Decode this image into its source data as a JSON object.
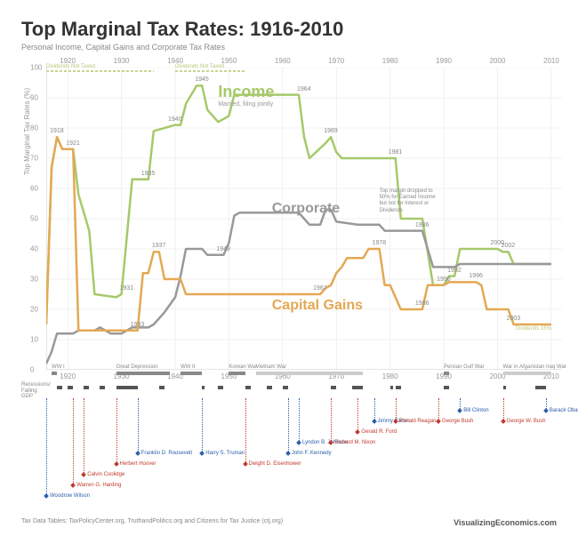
{
  "title": "Top Marginal Tax Rates: 1916-2010",
  "subtitle": "Personal Income, Capital Gains and Corporate Tax Rates",
  "y_axis": {
    "label": "Top Marginal Tax Rates (%)",
    "min": 0,
    "max": 100,
    "ticks": [
      0,
      10,
      20,
      30,
      40,
      50,
      60,
      70,
      80,
      90,
      100
    ]
  },
  "x_axis": {
    "min": 1916,
    "max": 2012,
    "ticks": [
      1920,
      1930,
      1940,
      1950,
      1960,
      1970,
      1980,
      1990,
      2000,
      2010
    ]
  },
  "background": "#ffffff",
  "grid_color": "#e5e5e5",
  "axis_color": "#cccccc",
  "series": {
    "income": {
      "label": "Income",
      "sublabel": "Married, filing jointly",
      "color": "#a6c96a",
      "width": 2.5,
      "points": [
        [
          1916,
          15
        ],
        [
          1917,
          67
        ],
        [
          1918,
          77
        ],
        [
          1919,
          73
        ],
        [
          1921,
          73
        ],
        [
          1922,
          58
        ],
        [
          1924,
          46
        ],
        [
          1925,
          25
        ],
        [
          1929,
          24
        ],
        [
          1930,
          25
        ],
        [
          1932,
          63
        ],
        [
          1935,
          63
        ],
        [
          1936,
          79
        ],
        [
          1940,
          81
        ],
        [
          1941,
          81
        ],
        [
          1942,
          88
        ],
        [
          1944,
          94
        ],
        [
          1945,
          94
        ],
        [
          1946,
          86
        ],
        [
          1948,
          82
        ],
        [
          1950,
          84
        ],
        [
          1951,
          91
        ],
        [
          1954,
          91
        ],
        [
          1963,
          91
        ],
        [
          1964,
          77
        ],
        [
          1965,
          70
        ],
        [
          1968,
          75
        ],
        [
          1969,
          77
        ],
        [
          1970,
          72
        ],
        [
          1971,
          70
        ],
        [
          1981,
          70
        ],
        [
          1982,
          50
        ],
        [
          1986,
          50
        ],
        [
          1987,
          39
        ],
        [
          1988,
          28
        ],
        [
          1990,
          28
        ],
        [
          1991,
          31
        ],
        [
          1992,
          31
        ],
        [
          1993,
          40
        ],
        [
          2000,
          40
        ],
        [
          2001,
          39
        ],
        [
          2002,
          39
        ],
        [
          2003,
          35
        ],
        [
          2010,
          35
        ]
      ]
    },
    "corporate": {
      "label": "Corporate",
      "color": "#999999",
      "width": 2.5,
      "points": [
        [
          1916,
          2
        ],
        [
          1917,
          6
        ],
        [
          1918,
          12
        ],
        [
          1921,
          12
        ],
        [
          1922,
          13
        ],
        [
          1925,
          13
        ],
        [
          1926,
          14
        ],
        [
          1928,
          12
        ],
        [
          1930,
          12
        ],
        [
          1932,
          14
        ],
        [
          1935,
          14
        ],
        [
          1936,
          15
        ],
        [
          1938,
          19
        ],
        [
          1940,
          24
        ],
        [
          1941,
          31
        ],
        [
          1942,
          40
        ],
        [
          1945,
          40
        ],
        [
          1946,
          38
        ],
        [
          1949,
          38
        ],
        [
          1950,
          42
        ],
        [
          1951,
          51
        ],
        [
          1952,
          52
        ],
        [
          1963,
          52
        ],
        [
          1964,
          50
        ],
        [
          1965,
          48
        ],
        [
          1967,
          48
        ],
        [
          1968,
          53
        ],
        [
          1969,
          53
        ],
        [
          1970,
          49
        ],
        [
          1974,
          48
        ],
        [
          1978,
          48
        ],
        [
          1979,
          46
        ],
        [
          1986,
          46
        ],
        [
          1987,
          40
        ],
        [
          1988,
          34
        ],
        [
          1992,
          34
        ],
        [
          1993,
          35
        ],
        [
          2010,
          35
        ]
      ]
    },
    "capgains": {
      "label": "Capital Gains",
      "color": "#e4a853",
      "width": 2.5,
      "points": [
        [
          1916,
          15
        ],
        [
          1917,
          67
        ],
        [
          1918,
          77
        ],
        [
          1919,
          73
        ],
        [
          1921,
          73
        ],
        [
          1922,
          13
        ],
        [
          1933,
          13
        ],
        [
          1934,
          32
        ],
        [
          1935,
          32
        ],
        [
          1936,
          39
        ],
        [
          1937,
          39
        ],
        [
          1938,
          30
        ],
        [
          1941,
          30
        ],
        [
          1942,
          25
        ],
        [
          1967,
          25
        ],
        [
          1968,
          27
        ],
        [
          1969,
          28
        ],
        [
          1970,
          32
        ],
        [
          1971,
          34
        ],
        [
          1972,
          37
        ],
        [
          1975,
          37
        ],
        [
          1976,
          40
        ],
        [
          1978,
          40
        ],
        [
          1979,
          28
        ],
        [
          1980,
          28
        ],
        [
          1981,
          24
        ],
        [
          1982,
          20
        ],
        [
          1986,
          20
        ],
        [
          1987,
          28
        ],
        [
          1990,
          28
        ],
        [
          1991,
          29
        ],
        [
          1996,
          29
        ],
        [
          1997,
          28
        ],
        [
          1998,
          20
        ],
        [
          2002,
          20
        ],
        [
          2003,
          15
        ],
        [
          2010,
          15
        ]
      ]
    }
  },
  "point_labels": [
    {
      "year": 1918,
      "val": 77,
      "text": "1918"
    },
    {
      "year": 1921,
      "val": 73,
      "text": "1921"
    },
    {
      "year": 1931,
      "val": 25,
      "text": "1931"
    },
    {
      "year": 1933,
      "val": 13,
      "text": "1933"
    },
    {
      "year": 1935,
      "val": 63,
      "text": "1935"
    },
    {
      "year": 1937,
      "val": 39,
      "text": "1937"
    },
    {
      "year": 1940,
      "val": 81,
      "text": "1940"
    },
    {
      "year": 1945,
      "val": 94,
      "text": "1945"
    },
    {
      "year": 1949,
      "val": 38,
      "text": "1949"
    },
    {
      "year": 1964,
      "val": 91,
      "text": "1964"
    },
    {
      "year": 1967,
      "val": 25,
      "text": "1967"
    },
    {
      "year": 1969,
      "val": 77,
      "text": "1969"
    },
    {
      "year": 1978,
      "val": 40,
      "text": "1978"
    },
    {
      "year": 1981,
      "val": 70,
      "text": "1981"
    },
    {
      "year": 1986,
      "val": 20,
      "text": "1986"
    },
    {
      "year": 1986,
      "val": 46,
      "text": "1986"
    },
    {
      "year": 1990,
      "val": 28,
      "text": "1990"
    },
    {
      "year": 1992,
      "val": 31,
      "text": "1992"
    },
    {
      "year": 1996,
      "val": 29,
      "text": "1996"
    },
    {
      "year": 2000,
      "val": 40,
      "text": "2000"
    },
    {
      "year": 2002,
      "val": 39,
      "text": "2002"
    },
    {
      "year": 2003,
      "val": 15,
      "text": "2003"
    }
  ],
  "dividends_not_taxed": [
    {
      "from": 1916,
      "to": 1936,
      "label": "Dividends Not Taxed"
    },
    {
      "from": 1940,
      "to": 1953,
      "label": "Dividends Not Taxed"
    }
  ],
  "dividends_15": {
    "text": "Dividends 15%",
    "year": 2010,
    "val": 15
  },
  "callout": {
    "text": "Top margin dropped to 50% for Earned Income but not for Interest or Dividends",
    "year": 1978,
    "val": 60
  },
  "wars": [
    {
      "name": "WW I",
      "from": 1917,
      "to": 1918
    },
    {
      "name": "Great Depression",
      "from": 1929,
      "to": 1939
    },
    {
      "name": "WW II",
      "from": 1941,
      "to": 1945
    },
    {
      "name": "Korean War",
      "from": 1950,
      "to": 1953
    },
    {
      "name": "Vietnam War",
      "from": 1955,
      "to": 1975,
      "light": true
    },
    {
      "name": "Persian Gulf War",
      "from": 1990,
      "to": 1991
    },
    {
      "name": "War in Afganistan Iraq War",
      "from": 2001,
      "to": 2010,
      "light": true
    }
  ],
  "recessions": [
    [
      1918,
      1919
    ],
    [
      1920,
      1921
    ],
    [
      1923,
      1924
    ],
    [
      1926,
      1927
    ],
    [
      1929,
      1933
    ],
    [
      1937,
      1938
    ],
    [
      1945,
      1945.5
    ],
    [
      1948,
      1949
    ],
    [
      1953,
      1954
    ],
    [
      1957,
      1958
    ],
    [
      1960,
      1961
    ],
    [
      1969,
      1970
    ],
    [
      1973,
      1975
    ],
    [
      1980,
      1980.5
    ],
    [
      1981,
      1982
    ],
    [
      1990,
      1991
    ],
    [
      2001,
      2001.5
    ],
    [
      2007,
      2009
    ]
  ],
  "recessions_label": "Recessions/\nFalling GDP",
  "presidents": [
    {
      "name": "Woodrow Wilson",
      "year": 1916,
      "party": "d",
      "row": 8
    },
    {
      "name": "Warren G. Harding",
      "year": 1921,
      "party": "r",
      "row": 7
    },
    {
      "name": "Calvin Coolidge",
      "year": 1923,
      "party": "r",
      "row": 6
    },
    {
      "name": "Herbert Hoover",
      "year": 1929,
      "party": "r",
      "row": 5
    },
    {
      "name": "Franklin D. Roosevelt",
      "year": 1933,
      "party": "d",
      "row": 4
    },
    {
      "name": "Harry S. Truman",
      "year": 1945,
      "party": "d",
      "row": 4
    },
    {
      "name": "Dwight D. Eisenhower",
      "year": 1953,
      "party": "r",
      "row": 5
    },
    {
      "name": "John F. Kennedy",
      "year": 1961,
      "party": "d",
      "row": 4
    },
    {
      "name": "Lyndon B. Johnson",
      "year": 1963,
      "party": "d",
      "row": 3
    },
    {
      "name": "Richard M. Nixon",
      "year": 1969,
      "party": "r",
      "row": 3
    },
    {
      "name": "Gerald R. Ford",
      "year": 1974,
      "party": "r",
      "row": 2
    },
    {
      "name": "Jimmy Carter",
      "year": 1977,
      "party": "d",
      "row": 1
    },
    {
      "name": "Ronald Reagan",
      "year": 1981,
      "party": "r",
      "row": 1
    },
    {
      "name": "George Bush",
      "year": 1989,
      "party": "r",
      "row": 1
    },
    {
      "name": "Bill Clinton",
      "year": 1993,
      "party": "d",
      "row": 0
    },
    {
      "name": "George W. Bush",
      "year": 2001,
      "party": "r",
      "row": 1
    },
    {
      "name": "Barack Obama",
      "year": 2009,
      "party": "d",
      "row": 0
    }
  ],
  "party_colors": {
    "d": "#2b5eaa",
    "r": "#c0392b"
  },
  "sources": "Tax Data Tables:  TaxPolicyCenter.org, TruthandPolitics.org and Citizens for Tax Justice (ctj.org)",
  "credit": "VisualizingEconomics.com"
}
